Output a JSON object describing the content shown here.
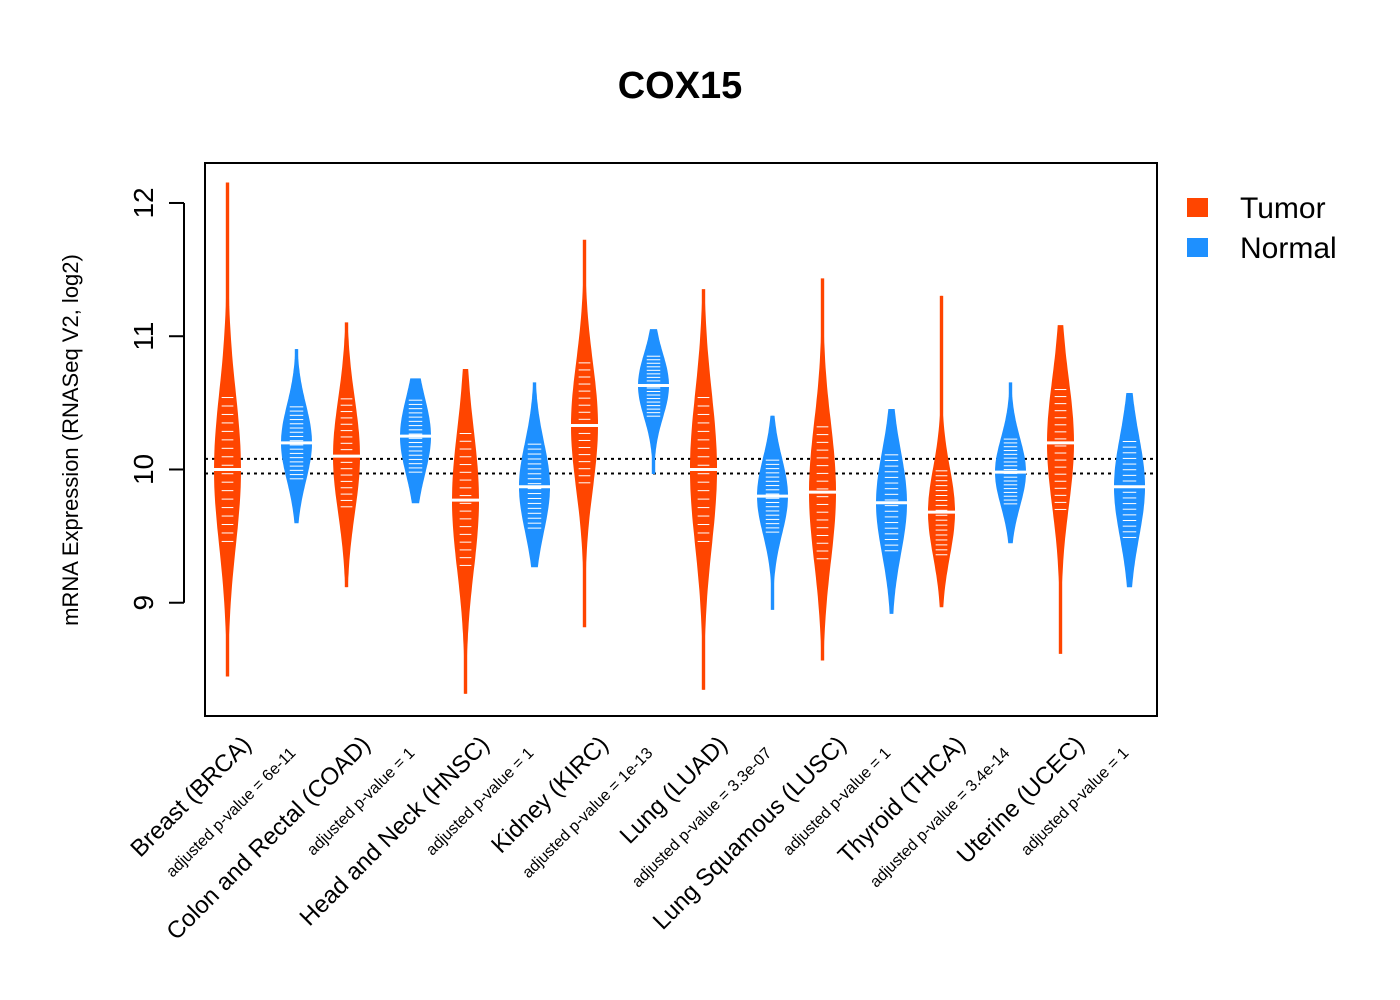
{
  "chart_data": {
    "type": "violin",
    "title": "COX15",
    "xlabel": "",
    "ylabel": "mRNA Expression (RNASeq V2, log2)",
    "ylim": [
      8.15,
      12.3
    ],
    "yticks": [
      9,
      10,
      11,
      12
    ],
    "reference_lines": [
      9.97,
      10.08
    ],
    "colors": {
      "Tumor": "#FF4500",
      "Normal": "#1E90FF"
    },
    "legend": {
      "position": "top-right",
      "entries": [
        "Tumor",
        "Normal"
      ]
    },
    "groups": [
      {
        "label": "Breast (BRCA)",
        "pvalue_label": "adjusted p-value = 6e-11",
        "tumor": {
          "median": 10.0,
          "min": 8.45,
          "max": 12.15,
          "q1": 9.7,
          "q3": 10.3
        },
        "normal": {
          "median": 10.2,
          "min": 9.6,
          "max": 10.9,
          "q1": 10.05,
          "q3": 10.35
        }
      },
      {
        "label": "Colon and Rectal (COAD)",
        "pvalue_label": "adjusted p-value = 1",
        "tumor": {
          "median": 10.1,
          "min": 9.12,
          "max": 11.1,
          "q1": 9.9,
          "q3": 10.35
        },
        "normal": {
          "median": 10.25,
          "min": 9.75,
          "max": 10.68,
          "q1": 10.1,
          "q3": 10.4
        }
      },
      {
        "label": "Head and Neck (HNSC)",
        "pvalue_label": "adjusted p-value = 1",
        "tumor": {
          "median": 9.77,
          "min": 8.32,
          "max": 10.75,
          "q1": 9.5,
          "q3": 10.05
        },
        "normal": {
          "median": 9.87,
          "min": 9.27,
          "max": 10.65,
          "q1": 9.7,
          "q3": 10.05
        }
      },
      {
        "label": "Kidney (KIRC)",
        "pvalue_label": "adjusted p-value = 1e-13",
        "tumor": {
          "median": 10.33,
          "min": 8.82,
          "max": 11.72,
          "q1": 10.1,
          "q3": 10.6
        },
        "normal": {
          "median": 10.63,
          "min": 9.97,
          "max": 11.05,
          "q1": 10.5,
          "q3": 10.75
        }
      },
      {
        "label": "Lung (LUAD)",
        "pvalue_label": "adjusted p-value = 3.3e-07",
        "tumor": {
          "median": 10.0,
          "min": 8.35,
          "max": 11.35,
          "q1": 9.7,
          "q3": 10.3
        },
        "normal": {
          "median": 9.8,
          "min": 8.95,
          "max": 10.4,
          "q1": 9.65,
          "q3": 9.95
        }
      },
      {
        "label": "Lung Squamous (LUSC)",
        "pvalue_label": "adjusted p-value = 1",
        "tumor": {
          "median": 9.83,
          "min": 8.57,
          "max": 11.43,
          "q1": 9.55,
          "q3": 10.1
        },
        "normal": {
          "median": 9.75,
          "min": 8.92,
          "max": 10.45,
          "q1": 9.55,
          "q3": 9.95
        }
      },
      {
        "label": "Thyroid (THCA)",
        "pvalue_label": "adjusted p-value = 3.4e-14",
        "tumor": {
          "median": 9.68,
          "min": 8.97,
          "max": 11.3,
          "q1": 9.5,
          "q3": 9.85
        },
        "normal": {
          "median": 9.98,
          "min": 9.45,
          "max": 10.65,
          "q1": 9.85,
          "q3": 10.12
        }
      },
      {
        "label": "Uterine (UCEC)",
        "pvalue_label": "adjusted p-value = 1",
        "tumor": {
          "median": 10.2,
          "min": 8.62,
          "max": 11.08,
          "q1": 9.9,
          "q3": 10.4
        },
        "normal": {
          "median": 9.87,
          "min": 9.12,
          "max": 10.57,
          "q1": 9.65,
          "q3": 10.05
        }
      }
    ]
  }
}
